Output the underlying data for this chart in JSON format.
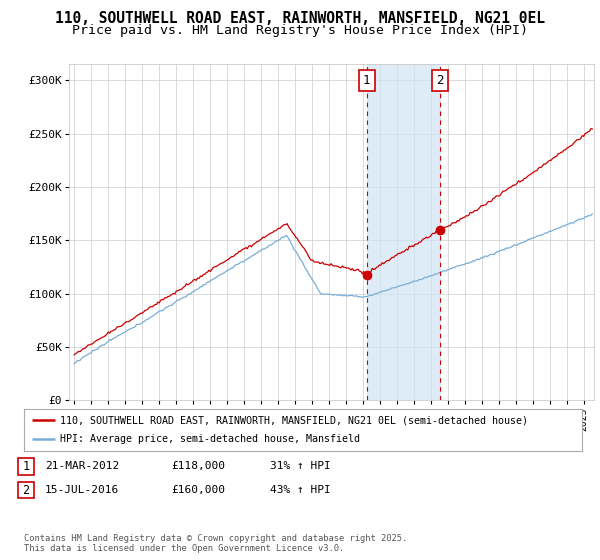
{
  "title1": "110, SOUTHWELL ROAD EAST, RAINWORTH, MANSFIELD, NG21 0EL",
  "title2": "Price paid vs. HM Land Registry's House Price Index (HPI)",
  "ylabel_ticks": [
    "£0",
    "£50K",
    "£100K",
    "£150K",
    "£200K",
    "£250K",
    "£300K"
  ],
  "ylim": [
    0,
    315000
  ],
  "xlim_start": 1994.7,
  "xlim_end": 2025.6,
  "property_color": "#cc0000",
  "hpi_color": "#7aaed6",
  "shaded_region": [
    2012.22,
    2016.55
  ],
  "marker1_x": 2012.22,
  "marker1_y": 118000,
  "marker1_label": "1",
  "marker2_x": 2016.55,
  "marker2_y": 160000,
  "marker2_label": "2",
  "legend_property": "110, SOUTHWELL ROAD EAST, RAINWORTH, MANSFIELD, NG21 0EL (semi-detached house)",
  "legend_hpi": "HPI: Average price, semi-detached house, Mansfield",
  "table_row1": [
    "1",
    "21-MAR-2012",
    "£118,000",
    "31% ↑ HPI"
  ],
  "table_row2": [
    "2",
    "15-JUL-2016",
    "£160,000",
    "43% ↑ HPI"
  ],
  "footer": "Contains HM Land Registry data © Crown copyright and database right 2025.\nThis data is licensed under the Open Government Licence v3.0.",
  "background_color": "#ffffff",
  "plot_bg_color": "#ffffff",
  "grid_color": "#cccccc"
}
